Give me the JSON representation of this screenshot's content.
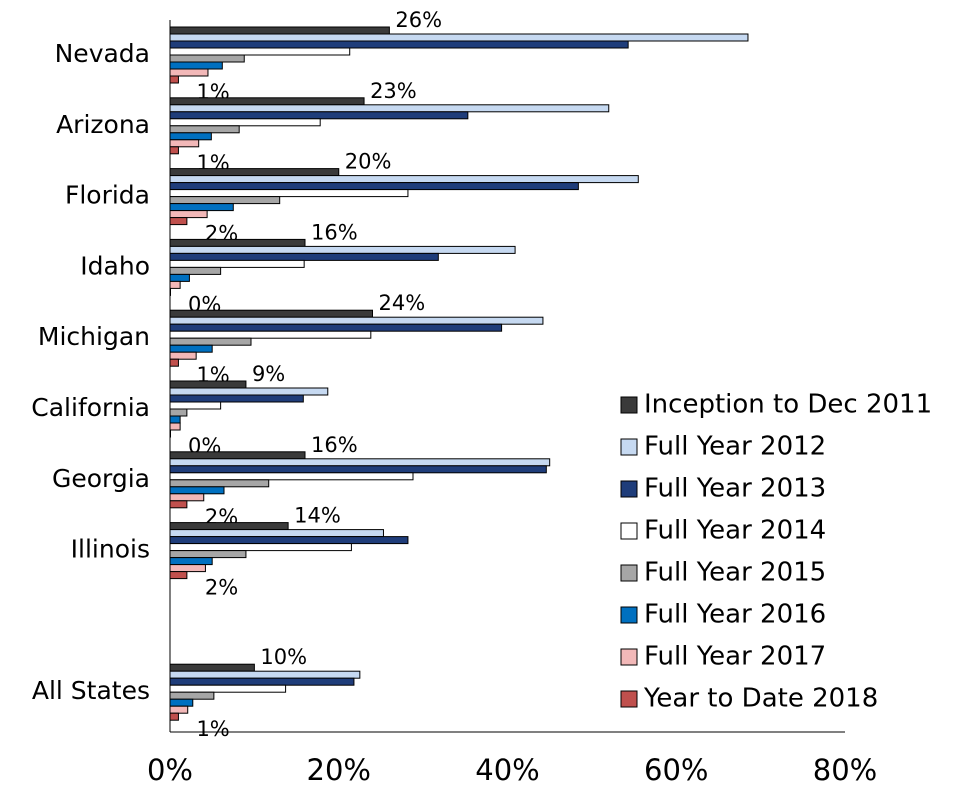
{
  "chart_data": {
    "type": "bar",
    "orientation": "horizontal",
    "categories": [
      "Nevada",
      "Arizona",
      "Florida",
      "Idaho",
      "Michigan",
      "California",
      "Georgia",
      "Illinois",
      null,
      "All States"
    ],
    "series": [
      {
        "name": "Inception to Dec 2011",
        "color": "#3a3a3a",
        "values": [
          26,
          23,
          20,
          16,
          24,
          9,
          16,
          14,
          null,
          10
        ],
        "value_labels": [
          "26%",
          "23%",
          "20%",
          "16%",
          "24%",
          "9%",
          "16%",
          "14%",
          null,
          "10%"
        ]
      },
      {
        "name": "Full Year 2012",
        "color": "#c6d9f1",
        "values": [
          68.5,
          52,
          55.5,
          40.9,
          44.2,
          18.7,
          45,
          25.3,
          null,
          22.5
        ]
      },
      {
        "name": "Full Year 2013",
        "color": "#1f3d7a",
        "values": [
          54.3,
          35.3,
          48.4,
          31.8,
          39.3,
          15.8,
          44.6,
          28.2,
          null,
          21.8
        ]
      },
      {
        "name": "Full Year 2014",
        "color": "#ffffff",
        "values": [
          21.3,
          17.8,
          28.2,
          15.9,
          23.8,
          6,
          28.8,
          21.5,
          null,
          13.7
        ]
      },
      {
        "name": "Full Year 2015",
        "color": "#a6a6a6",
        "values": [
          8.8,
          8.2,
          13,
          6,
          9.6,
          2,
          11.7,
          9,
          null,
          5.2
        ]
      },
      {
        "name": "Full Year 2016",
        "color": "#0070c0",
        "values": [
          6.2,
          4.9,
          7.5,
          2.3,
          5,
          1.2,
          6.4,
          5,
          null,
          2.7
        ]
      },
      {
        "name": "Full Year 2017",
        "color": "#f2b8b8",
        "values": [
          4.5,
          3.4,
          4.4,
          1.2,
          3.1,
          1.2,
          4,
          4.2,
          null,
          2.1
        ]
      },
      {
        "name": "Year to Date 2018",
        "color": "#c0504d",
        "values": [
          1,
          1,
          2,
          0,
          1,
          0,
          2,
          2,
          null,
          1
        ],
        "value_labels": [
          "1%",
          "1%",
          "2%",
          "0%",
          "1%",
          "0%",
          "2%",
          "2%",
          null,
          "1%"
        ]
      }
    ],
    "xlim": [
      0,
      80
    ],
    "xticks": [
      {
        "value": 0,
        "label": "0%"
      },
      {
        "value": 20,
        "label": "20%"
      },
      {
        "value": 40,
        "label": "40%"
      },
      {
        "value": 60,
        "label": "60%"
      },
      {
        "value": 80,
        "label": "80%"
      }
    ],
    "grid": false,
    "legend": "right"
  }
}
